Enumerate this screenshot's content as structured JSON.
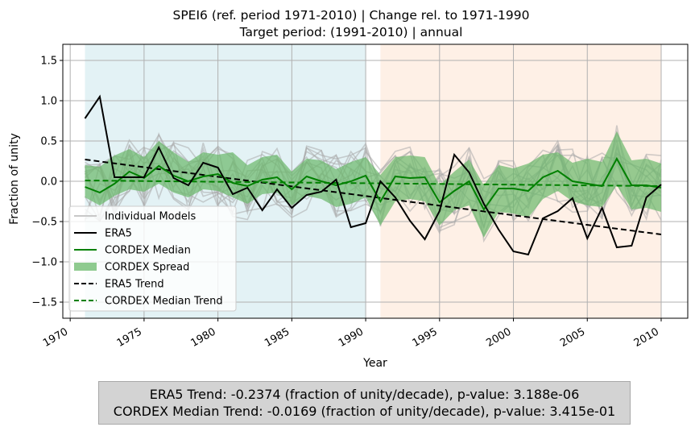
{
  "chart_data": {
    "type": "line",
    "title": [
      "SPEI6 (ref. period 1971-2010) | Change rel. to 1971-1990",
      "Target period: (1991-2010) | annual"
    ],
    "xlabel": "Year",
    "ylabel": "Fraction of unity",
    "xlim": [
      1969.5,
      2011.8
    ],
    "ylim": [
      -1.7,
      1.7
    ],
    "xticks": [
      1970,
      1975,
      1980,
      1985,
      1990,
      1995,
      2000,
      2005,
      2010
    ],
    "yticks": [
      -1.5,
      -1.0,
      -0.5,
      0.0,
      0.5,
      1.0,
      1.5
    ],
    "ytick_labels": [
      "−1.5",
      "−1.0",
      "−0.5",
      "0.0",
      "0.5",
      "1.0",
      "1.5"
    ],
    "grid": true,
    "shaded_periods": [
      {
        "from": 1971,
        "to": 1990,
        "color": "#e3f2f5"
      },
      {
        "from": 1991,
        "to": 2010,
        "color": "#fef0e6"
      }
    ],
    "x": [
      1971,
      1972,
      1973,
      1974,
      1975,
      1976,
      1977,
      1978,
      1979,
      1980,
      1981,
      1982,
      1983,
      1984,
      1985,
      1986,
      1987,
      1988,
      1989,
      1990,
      1991,
      1992,
      1993,
      1994,
      1995,
      1996,
      1997,
      1998,
      1999,
      2000,
      2001,
      2002,
      2003,
      2004,
      2005,
      2006,
      2007,
      2008,
      2009,
      2010
    ],
    "series": [
      {
        "name": "ERA5",
        "color": "#000000",
        "style": "solid",
        "values": [
          0.78,
          1.05,
          0.05,
          0.05,
          0.05,
          0.42,
          0.04,
          -0.05,
          0.23,
          0.17,
          -0.16,
          -0.08,
          -0.36,
          -0.1,
          -0.33,
          -0.17,
          -0.13,
          0.02,
          -0.57,
          -0.52,
          0.0,
          -0.2,
          -0.49,
          -0.72,
          -0.37,
          0.33,
          0.11,
          -0.28,
          -0.6,
          -0.87,
          -0.91,
          -0.46,
          -0.37,
          -0.21,
          -0.71,
          -0.33,
          -0.82,
          -0.8,
          -0.2,
          -0.04
        ]
      },
      {
        "name": "CORDEX Median",
        "color": "#008000",
        "style": "solid",
        "values": [
          -0.07,
          -0.14,
          -0.03,
          0.12,
          0.04,
          0.19,
          0.07,
          0.0,
          0.06,
          0.09,
          -0.02,
          -0.06,
          0.02,
          0.05,
          -0.1,
          0.06,
          0.0,
          -0.05,
          0.0,
          0.07,
          -0.25,
          0.06,
          0.04,
          0.05,
          -0.26,
          -0.12,
          0.0,
          -0.35,
          -0.09,
          -0.09,
          -0.12,
          0.05,
          0.13,
          0.0,
          -0.03,
          -0.06,
          0.28,
          -0.05,
          -0.05,
          -0.08
        ]
      },
      {
        "name": "CORDEX Spread",
        "color": "#6ab86a",
        "style": "band",
        "lower": [
          -0.2,
          -0.3,
          -0.18,
          -0.1,
          -0.13,
          -0.03,
          -0.14,
          -0.2,
          -0.1,
          -0.12,
          -0.2,
          -0.28,
          -0.16,
          -0.14,
          -0.3,
          -0.18,
          -0.22,
          -0.32,
          -0.28,
          -0.2,
          -0.55,
          -0.25,
          -0.22,
          -0.25,
          -0.55,
          -0.36,
          -0.3,
          -0.7,
          -0.38,
          -0.4,
          -0.45,
          -0.22,
          -0.12,
          -0.25,
          -0.3,
          -0.32,
          -0.05,
          -0.35,
          -0.33,
          -0.38
        ],
        "upper": [
          0.2,
          0.18,
          0.32,
          0.4,
          0.3,
          0.5,
          0.36,
          0.24,
          0.36,
          0.33,
          0.36,
          0.2,
          0.3,
          0.33,
          0.12,
          0.28,
          0.26,
          0.15,
          0.24,
          0.3,
          0.08,
          0.3,
          0.32,
          0.3,
          -0.05,
          0.12,
          0.27,
          -0.05,
          0.2,
          0.16,
          0.22,
          0.33,
          0.36,
          0.23,
          0.28,
          0.24,
          0.62,
          0.26,
          0.28,
          0.22
        ]
      },
      {
        "name": "ERA5 Trend",
        "color": "#000000",
        "style": "dashed",
        "from": [
          1971,
          0.27
        ],
        "to": [
          2010,
          -0.66
        ]
      },
      {
        "name": "CORDEX Median Trend",
        "color": "#008000",
        "style": "dashed",
        "from": [
          1971,
          0.01
        ],
        "to": [
          2010,
          -0.06
        ]
      },
      {
        "name": "Individual Models",
        "color": "#a9a9a9",
        "style": "ensemble",
        "count": 14,
        "amplitude": 0.3
      }
    ],
    "legend": {
      "position": "lower-left",
      "entries": [
        "Individual Models",
        "ERA5",
        "CORDEX Median",
        "CORDEX Spread",
        "ERA5 Trend",
        "CORDEX Median Trend"
      ]
    },
    "annotation": {
      "line1": "ERA5 Trend: -0.2374 (fraction of unity/decade), p-value: 3.188e-06",
      "line2": "CORDEX Median Trend: -0.0169 (fraction of unity/decade), p-value: 3.415e-01"
    }
  }
}
